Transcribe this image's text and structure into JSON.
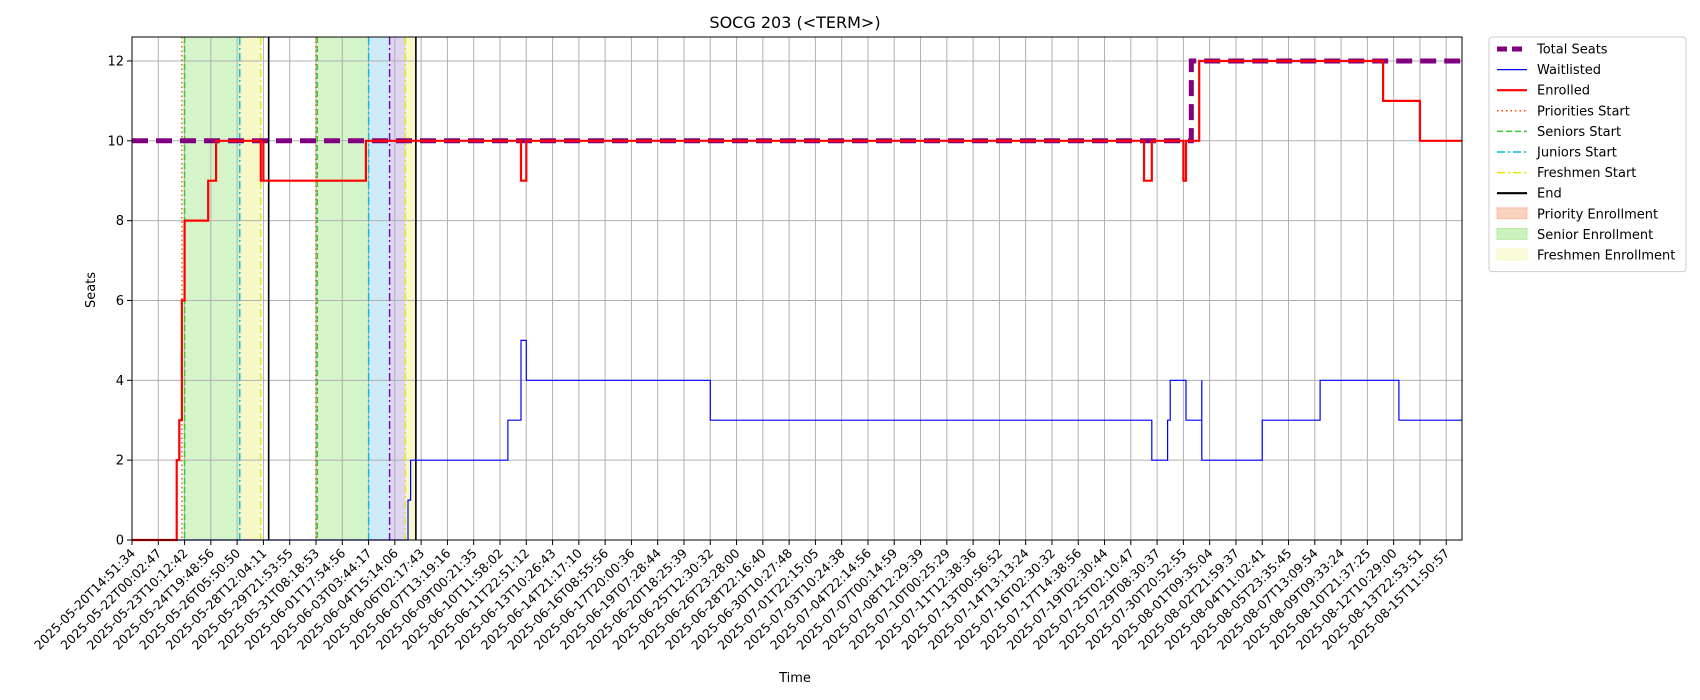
{
  "chart_data": {
    "type": "line",
    "title": "SOCG 203 (<TERM>)",
    "xlabel": "Time",
    "ylabel": "Seats",
    "ylim": [
      0,
      12.6
    ],
    "yticks": [
      0,
      2,
      4,
      6,
      8,
      10,
      12
    ],
    "grid": true,
    "legend_position": "outside-right-top",
    "x_tick_labels": [
      "2025-05-20T14:51:34",
      "2025-05-22T00:02:47",
      "2025-05-23T10:12:42",
      "2025-05-24T19:48:56",
      "2025-05-26T05:50:50",
      "2025-05-28T12:04:11",
      "2025-05-29T21:53:55",
      "2025-05-31T08:18:53",
      "2025-06-01T17:54:56",
      "2025-06-03T03:44:17",
      "2025-06-04T15:14:06",
      "2025-06-06T02:17:43",
      "2025-06-07T13:19:16",
      "2025-06-09T00:21:35",
      "2025-06-10T11:58:02",
      "2025-06-11T22:51:12",
      "2025-06-13T10:26:43",
      "2025-06-14T21:17:10",
      "2025-06-16T08:55:56",
      "2025-06-17T20:00:36",
      "2025-06-19T07:28:44",
      "2025-06-20T18:25:39",
      "2025-06-25T12:30:32",
      "2025-06-26T23:28:00",
      "2025-06-28T22:16:40",
      "2025-06-30T10:27:48",
      "2025-07-01T22:15:05",
      "2025-07-03T10:24:38",
      "2025-07-04T22:14:56",
      "2025-07-07T00:14:59",
      "2025-07-08T12:29:39",
      "2025-07-10T00:25:29",
      "2025-07-11T12:38:36",
      "2025-07-13T00:56:52",
      "2025-07-14T13:13:24",
      "2025-07-16T02:30:32",
      "2025-07-17T14:38:56",
      "2025-07-19T02:30:44",
      "2025-07-25T02:10:47",
      "2025-07-29T08:30:37",
      "2025-07-30T20:52:55",
      "2025-08-01T09:35:04",
      "2025-08-02T21:59:37",
      "2025-08-04T11:02:41",
      "2025-08-05T23:35:45",
      "2025-08-07T13:09:54",
      "2025-08-09T09:33:24",
      "2025-08-10T21:37:25",
      "2025-08-12T10:29:00",
      "2025-08-13T22:53:51",
      "2025-08-15T11:50:57"
    ],
    "x_domain": [
      0,
      50.6
    ],
    "series": [
      {
        "name": "Total Seats",
        "color": "#800080",
        "style": "dashed-thick",
        "points": [
          [
            0,
            10
          ],
          [
            40.3,
            10
          ],
          [
            40.3,
            12
          ],
          [
            50.6,
            12
          ]
        ]
      },
      {
        "name": "Waitlisted",
        "color": "#0000ff",
        "style": "solid-thin",
        "points": [
          [
            0,
            0
          ],
          [
            10.5,
            0
          ],
          [
            10.5,
            1
          ],
          [
            10.6,
            1
          ],
          [
            10.6,
            2
          ],
          [
            14.3,
            2
          ],
          [
            14.3,
            3
          ],
          [
            14.8,
            3
          ],
          [
            14.8,
            5
          ],
          [
            15.0,
            5
          ],
          [
            15.0,
            4
          ],
          [
            22.0,
            4
          ],
          [
            22.0,
            3
          ],
          [
            38.8,
            3
          ],
          [
            38.8,
            2
          ],
          [
            39.4,
            2
          ],
          [
            39.4,
            3
          ],
          [
            39.5,
            3
          ],
          [
            39.5,
            4
          ],
          [
            40.1,
            4
          ],
          [
            40.1,
            3
          ],
          [
            40.7,
            3
          ],
          [
            40.7,
            4
          ],
          [
            40.7,
            2
          ],
          [
            43.0,
            2
          ],
          [
            43.0,
            3
          ],
          [
            45.2,
            3
          ],
          [
            45.2,
            4
          ],
          [
            48.2,
            4
          ],
          [
            48.2,
            3
          ],
          [
            50.6,
            3
          ]
        ]
      },
      {
        "name": "Enrolled",
        "color": "#ff0000",
        "style": "solid",
        "points": [
          [
            0,
            0
          ],
          [
            1.7,
            0
          ],
          [
            1.7,
            2
          ],
          [
            1.8,
            2
          ],
          [
            1.8,
            3
          ],
          [
            1.9,
            3
          ],
          [
            1.9,
            6
          ],
          [
            2.0,
            6
          ],
          [
            2.0,
            8
          ],
          [
            2.9,
            8
          ],
          [
            2.9,
            9
          ],
          [
            3.2,
            9
          ],
          [
            3.2,
            10
          ],
          [
            4.9,
            10
          ],
          [
            4.9,
            9
          ],
          [
            5.0,
            9
          ],
          [
            5.0,
            10
          ],
          [
            5.0,
            9
          ],
          [
            8.9,
            9
          ],
          [
            8.9,
            10
          ],
          [
            14.8,
            10
          ],
          [
            14.8,
            9
          ],
          [
            15.0,
            9
          ],
          [
            15.0,
            10
          ],
          [
            38.5,
            10
          ],
          [
            38.5,
            9
          ],
          [
            38.8,
            9
          ],
          [
            38.8,
            10
          ],
          [
            40.0,
            10
          ],
          [
            40.0,
            9
          ],
          [
            40.1,
            9
          ],
          [
            40.1,
            10
          ],
          [
            40.6,
            10
          ],
          [
            40.6,
            12
          ],
          [
            47.6,
            12
          ],
          [
            47.6,
            11
          ],
          [
            49.0,
            11
          ],
          [
            49.0,
            10
          ],
          [
            50.6,
            10
          ]
        ]
      }
    ],
    "vlines": [
      {
        "name": "Priorities Start",
        "color": "#ff4500",
        "style": "dotted",
        "x": [
          1.9,
          7.0
        ]
      },
      {
        "name": "Seniors Start",
        "color": "#32cd32",
        "style": "dashed",
        "x": [
          2.0,
          7.05
        ]
      },
      {
        "name": "Juniors Start",
        "color": "#00bcd4",
        "style": "dashdot",
        "x": [
          4.1,
          9.0
        ]
      },
      {
        "name": "Freshmen Start",
        "color": "#e6e600",
        "style": "dashdot",
        "x": [
          4.9,
          10.4
        ]
      },
      {
        "name": "End",
        "color": "#000000",
        "style": "solid",
        "x": [
          5.2,
          10.8
        ]
      },
      {
        "name": "",
        "color": "#6a0dad",
        "style": "dashdot",
        "x": [
          9.8
        ]
      }
    ],
    "spans": [
      {
        "name": "Priority Enrollment",
        "color": "#f4a582",
        "alpha": 0.35,
        "from": [],
        "to": []
      },
      {
        "name": "Senior Enrollment",
        "color": "#98e37a",
        "alpha": 0.4,
        "from": [
          1.95,
          7.0
        ],
        "to": [
          4.1,
          9.0
        ]
      },
      {
        "name": "",
        "color": "#a6d8f0",
        "alpha": 0.55,
        "from": [
          9.0
        ],
        "to": [
          9.8
        ]
      },
      {
        "name": "",
        "color": "#c9b8ec",
        "alpha": 0.6,
        "from": [
          9.8
        ],
        "to": [
          10.4
        ]
      },
      {
        "name": "Freshmen Enrollment",
        "color": "#f3f5b0",
        "alpha": 0.7,
        "from": [
          4.1,
          10.4
        ],
        "to": [
          4.9,
          10.8
        ]
      }
    ],
    "legend": [
      {
        "label": "Total Seats",
        "kind": "line",
        "color": "#800080",
        "style": "dashed-thick"
      },
      {
        "label": "Waitlisted",
        "kind": "line",
        "color": "#0000ff",
        "style": "solid-thin"
      },
      {
        "label": "Enrolled",
        "kind": "line",
        "color": "#ff0000",
        "style": "solid"
      },
      {
        "label": "Priorities Start",
        "kind": "line",
        "color": "#ff4500",
        "style": "dotted"
      },
      {
        "label": "Seniors Start",
        "kind": "line",
        "color": "#32cd32",
        "style": "dashed"
      },
      {
        "label": "Juniors Start",
        "kind": "line",
        "color": "#00bcd4",
        "style": "dashdot"
      },
      {
        "label": "Freshmen Start",
        "kind": "line",
        "color": "#e6e600",
        "style": "dashdot"
      },
      {
        "label": "End",
        "kind": "line",
        "color": "#000000",
        "style": "solid"
      },
      {
        "label": "Priority Enrollment",
        "kind": "patch",
        "color": "#f4a582"
      },
      {
        "label": "Senior Enrollment",
        "kind": "patch",
        "color": "#98e37a"
      },
      {
        "label": "Freshmen Enrollment",
        "kind": "patch",
        "color": "#f3f5b0"
      }
    ]
  }
}
